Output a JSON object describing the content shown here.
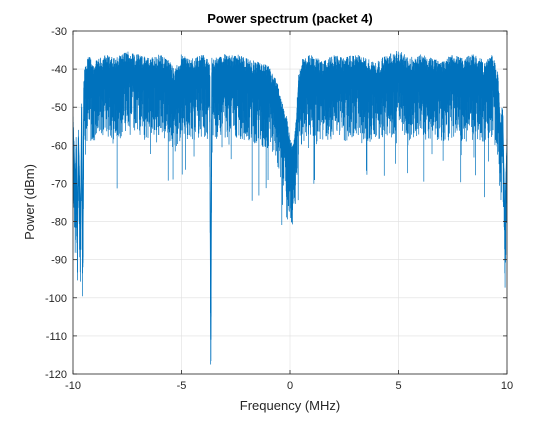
{
  "chart_data": {
    "type": "line",
    "title": "Power spectrum (packet 4)",
    "xlabel": "Frequency (MHz)",
    "ylabel": "Power (dBm)",
    "xlim": [
      -10,
      10
    ],
    "ylim": [
      -120,
      -30
    ],
    "xticks": [
      -10,
      -5,
      0,
      5,
      10
    ],
    "xtick_labels": [
      "-10",
      "-5",
      "0",
      "5",
      "10"
    ],
    "yticks": [
      -120,
      -110,
      -100,
      -90,
      -80,
      -70,
      -60,
      -50,
      -40,
      -30
    ],
    "ytick_labels": [
      "-120",
      "-110",
      "-100",
      "-90",
      "-80",
      "-70",
      "-60",
      "-50",
      "-40",
      "-30"
    ],
    "grid": true,
    "color": "#0072BD",
    "series": [
      {
        "x": [
          -10.0,
          -9.95,
          -9.9,
          -9.85,
          -9.8,
          -9.75,
          -9.7,
          -9.65,
          -9.6,
          -9.55,
          -9.5,
          -9.4,
          -9.3,
          -9.2,
          -9.1,
          -9.0,
          -8.5,
          -8.0,
          -7.5,
          -7.0,
          -6.5,
          -6.0,
          -5.5,
          -5.3,
          -5.0,
          -4.5,
          -4.0,
          -3.7,
          -3.65,
          -3.6,
          -3.0,
          -2.5,
          -2.0,
          -1.5,
          -1.0,
          -0.6,
          -0.4,
          -0.2,
          0.0,
          0.15,
          0.3,
          0.4,
          0.6,
          1.0,
          1.5,
          2.0,
          2.5,
          3.0,
          3.5,
          4.0,
          4.5,
          5.0,
          5.5,
          6.0,
          6.5,
          7.0,
          7.5,
          8.0,
          8.5,
          9.0,
          9.3,
          9.5,
          9.6,
          9.7,
          9.8,
          9.9,
          10.0
        ],
        "y": [
          -55,
          -62,
          -72,
          -60,
          -84,
          -58,
          -70,
          -82,
          -50,
          -92,
          -45,
          -42,
          -40,
          -41,
          -43,
          -42,
          -40,
          -41,
          -39,
          -40,
          -41,
          -40,
          -42,
          -44,
          -40,
          -41,
          -40,
          -42,
          -111,
          -41,
          -40,
          -40,
          -41,
          -42,
          -43,
          -47,
          -52,
          -55,
          -61,
          -64,
          -55,
          -44,
          -41,
          -40,
          -42,
          -40,
          -41,
          -40,
          -41,
          -42,
          -40,
          -39,
          -41,
          -40,
          -41,
          -42,
          -40,
          -41,
          -40,
          -42,
          -40,
          -43,
          -46,
          -58,
          -52,
          -80,
          -60
        ]
      }
    ]
  }
}
